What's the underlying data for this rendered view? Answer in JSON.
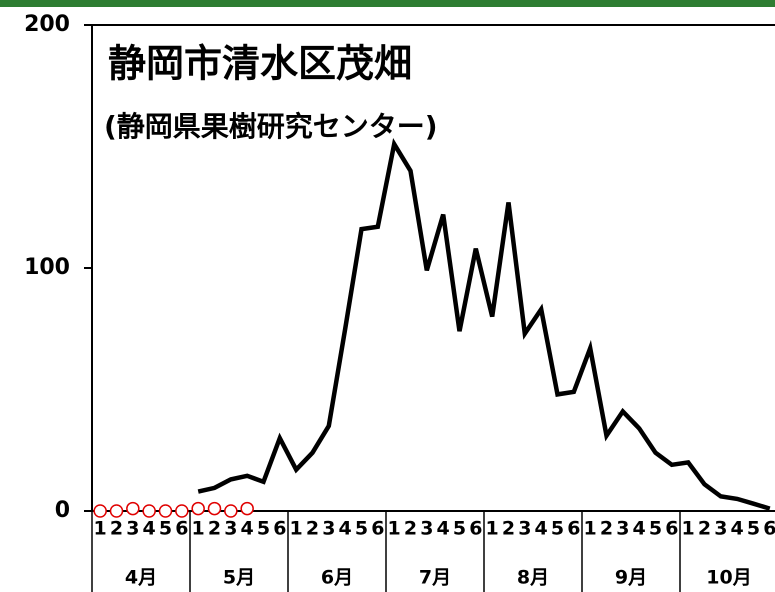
{
  "chart_data": {
    "type": "line",
    "title": "静岡市清水区茂畑",
    "subtitle": "(静岡県果樹研究センター)",
    "categories": [
      "1",
      "2",
      "3",
      "4",
      "5",
      "6",
      "1",
      "2",
      "3",
      "4",
      "5",
      "6",
      "1",
      "2",
      "3",
      "4",
      "5",
      "6",
      "1",
      "2",
      "3",
      "4",
      "5",
      "6",
      "1",
      "2",
      "3",
      "4",
      "5",
      "6",
      "1",
      "2",
      "3",
      "4",
      "5",
      "6",
      "1",
      "2",
      "3",
      "4",
      "5",
      "6"
    ],
    "months": [
      "4月",
      "5月",
      "6月",
      "7月",
      "8月",
      "9月",
      "10月"
    ],
    "series": [
      {
        "color": "#000000",
        "style": "line",
        "values": [
          null,
          null,
          null,
          null,
          null,
          null,
          8,
          9.5,
          13,
          14.5,
          12,
          30,
          17,
          24,
          35,
          75,
          116,
          117,
          151,
          140,
          99,
          122,
          74,
          108,
          80,
          127,
          73,
          83,
          48,
          49,
          67,
          31,
          41,
          34,
          24,
          19,
          20,
          11,
          6,
          5,
          3,
          1
        ]
      },
      {
        "color": "#e00000",
        "style": "markers",
        "values": [
          0,
          0,
          1,
          0,
          0,
          0,
          1,
          1,
          0,
          1,
          null,
          null,
          null,
          null,
          null,
          null,
          null,
          null,
          null,
          null,
          null,
          null,
          null,
          null,
          null,
          null,
          null,
          null,
          null,
          null,
          null,
          null,
          null,
          null,
          null,
          null,
          null,
          null,
          null,
          null,
          null,
          null
        ]
      }
    ],
    "ylim": [
      0,
      200
    ],
    "yticks": [
      0,
      100,
      200
    ]
  }
}
